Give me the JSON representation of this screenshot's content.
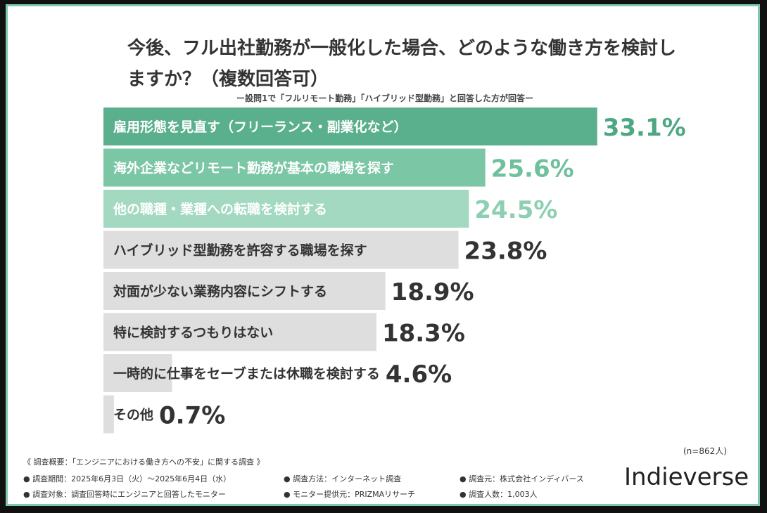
{
  "title": "今後、フル出社勤務が一般化した場合、どのような働き方を検討しますか？（複数回答可）",
  "subtitle": "ー設問1で「フルリモート勤務」「ハイブリッド型勤務」と回答した方が回答ー",
  "chart_data": {
    "type": "bar",
    "orientation": "horizontal",
    "categories": [
      "雇用形態を見直す（フリーランス・副業化など）",
      "海外企業などリモート勤務が基本の職場を探す",
      "他の職種・業種への転職を検討する",
      "ハイブリッド型勤務を許容する職場を探す",
      "対面が少ない業務内容にシフトする",
      "特に検討するつもりはない",
      "一時的に仕事をセーブまたは休職を検討する",
      "その他"
    ],
    "values": [
      33.1,
      25.6,
      24.5,
      23.8,
      18.9,
      18.3,
      4.6,
      0.7
    ],
    "value_labels": [
      "33.1%",
      "25.6%",
      "24.5%",
      "23.8%",
      "18.9%",
      "18.3%",
      "4.6%",
      "0.7%"
    ],
    "bar_colors": [
      "#5aaf8c",
      "#7ac6a5",
      "#a3d9c0",
      "#dedede",
      "#dedede",
      "#dedede",
      "#dedede",
      "#dedede"
    ],
    "label_colors": [
      "#ffffff",
      "#ffffff",
      "#ffffff",
      "#333333",
      "#333333",
      "#333333",
      "#333333",
      "#333333"
    ],
    "value_colors": [
      "#4ea783",
      "#6fc09d",
      "#8dcfb2",
      "#333333",
      "#333333",
      "#333333",
      "#333333",
      "#333333"
    ]
  },
  "sample_note": "(n=862人)",
  "footer": {
    "overview": "《 調査概要：「エンジニアにおける働き方への不安」に関する調査 》",
    "period": "● 調査期間：2025年6月3日（火）〜2025年6月4日（水）",
    "method": "● 調査方法：インターネット調査",
    "source": "● 調査元：株式会社インディバース",
    "target": "● 調査対象：調査回答時にエンジニアと回答したモニター",
    "provider": "● モニター提供元：PRIZMAリサーチ",
    "count": "● 調査人数：1,003人"
  },
  "brand": "Indieverse"
}
